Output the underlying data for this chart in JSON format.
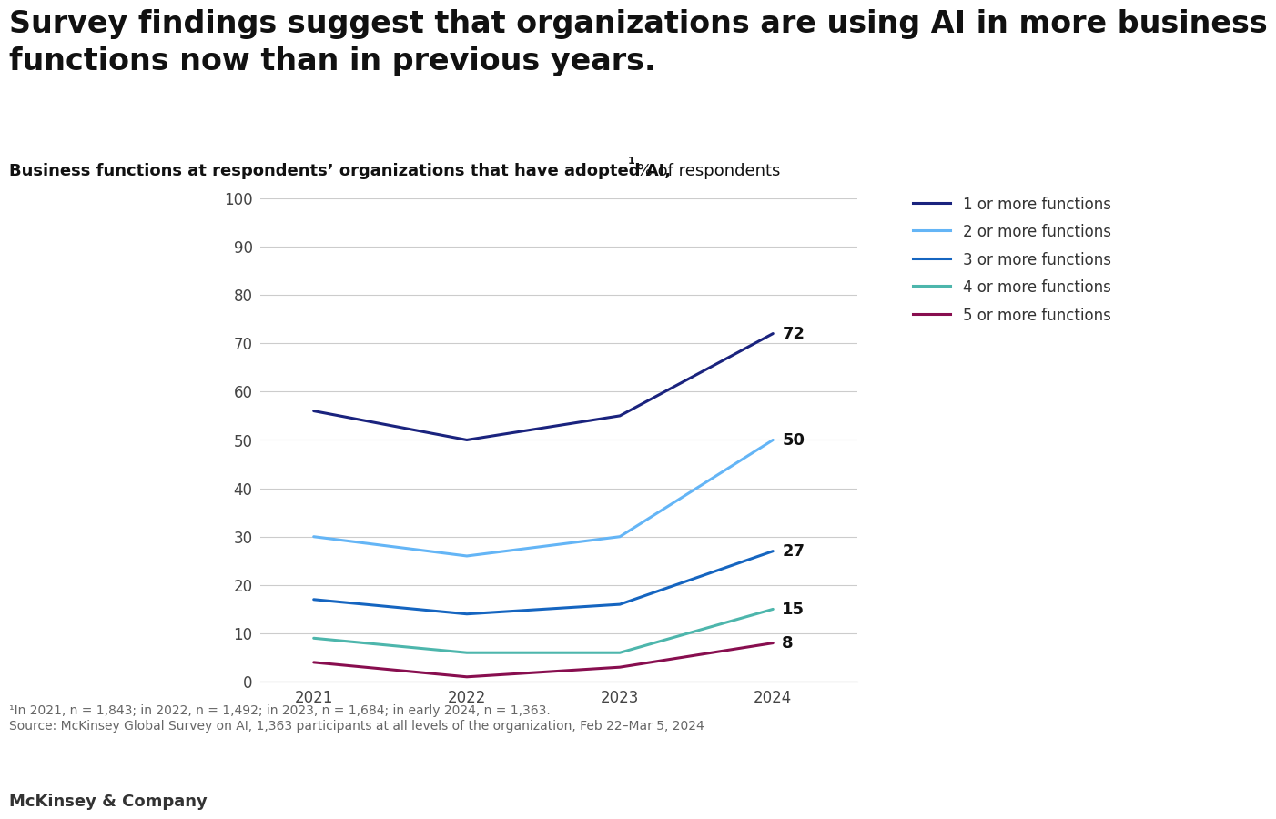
{
  "title_main": "Survey findings suggest that organizations are using AI in more business\nfunctions now than in previous years.",
  "subtitle": "Business functions at respondents’ organizations that have adopted AI,",
  "subtitle_superscript": "1",
  "subtitle_suffix": " % of respondents",
  "years": [
    2021,
    2022,
    2023,
    2024
  ],
  "series": [
    {
      "label": "1 or more functions",
      "values": [
        56,
        50,
        55,
        72
      ],
      "color": "#1a237e",
      "linewidth": 2.2,
      "end_label": "72"
    },
    {
      "label": "2 or more functions",
      "values": [
        30,
        26,
        30,
        50
      ],
      "color": "#64b5f6",
      "linewidth": 2.2,
      "end_label": "50"
    },
    {
      "label": "3 or more functions",
      "values": [
        17,
        14,
        16,
        27
      ],
      "color": "#1565c0",
      "linewidth": 2.2,
      "end_label": "27"
    },
    {
      "label": "4 or more functions",
      "values": [
        9,
        6,
        6,
        15
      ],
      "color": "#4db6ac",
      "linewidth": 2.2,
      "end_label": "15"
    },
    {
      "label": "5 or more functions",
      "values": [
        4,
        1,
        3,
        8
      ],
      "color": "#880e4f",
      "linewidth": 2.2,
      "end_label": "8"
    }
  ],
  "ylim": [
    0,
    100
  ],
  "yticks": [
    0,
    10,
    20,
    30,
    40,
    50,
    60,
    70,
    80,
    90,
    100
  ],
  "background_color": "#ffffff",
  "footnote_line1": "¹In 2021, n = 1,843; in 2022, n = 1,492; in 2023, n = 1,684; in early 2024, n = 1,363.",
  "footnote_line2": "Source: McKinsey Global Survey on AI, 1,363 participants at all levels of the organization, Feb 22–Mar 5, 2024",
  "branding": "McKinsey & Company",
  "title_fontsize": 24,
  "subtitle_fontsize": 13,
  "axis_fontsize": 12,
  "legend_fontsize": 12,
  "footnote_fontsize": 10,
  "branding_fontsize": 13
}
